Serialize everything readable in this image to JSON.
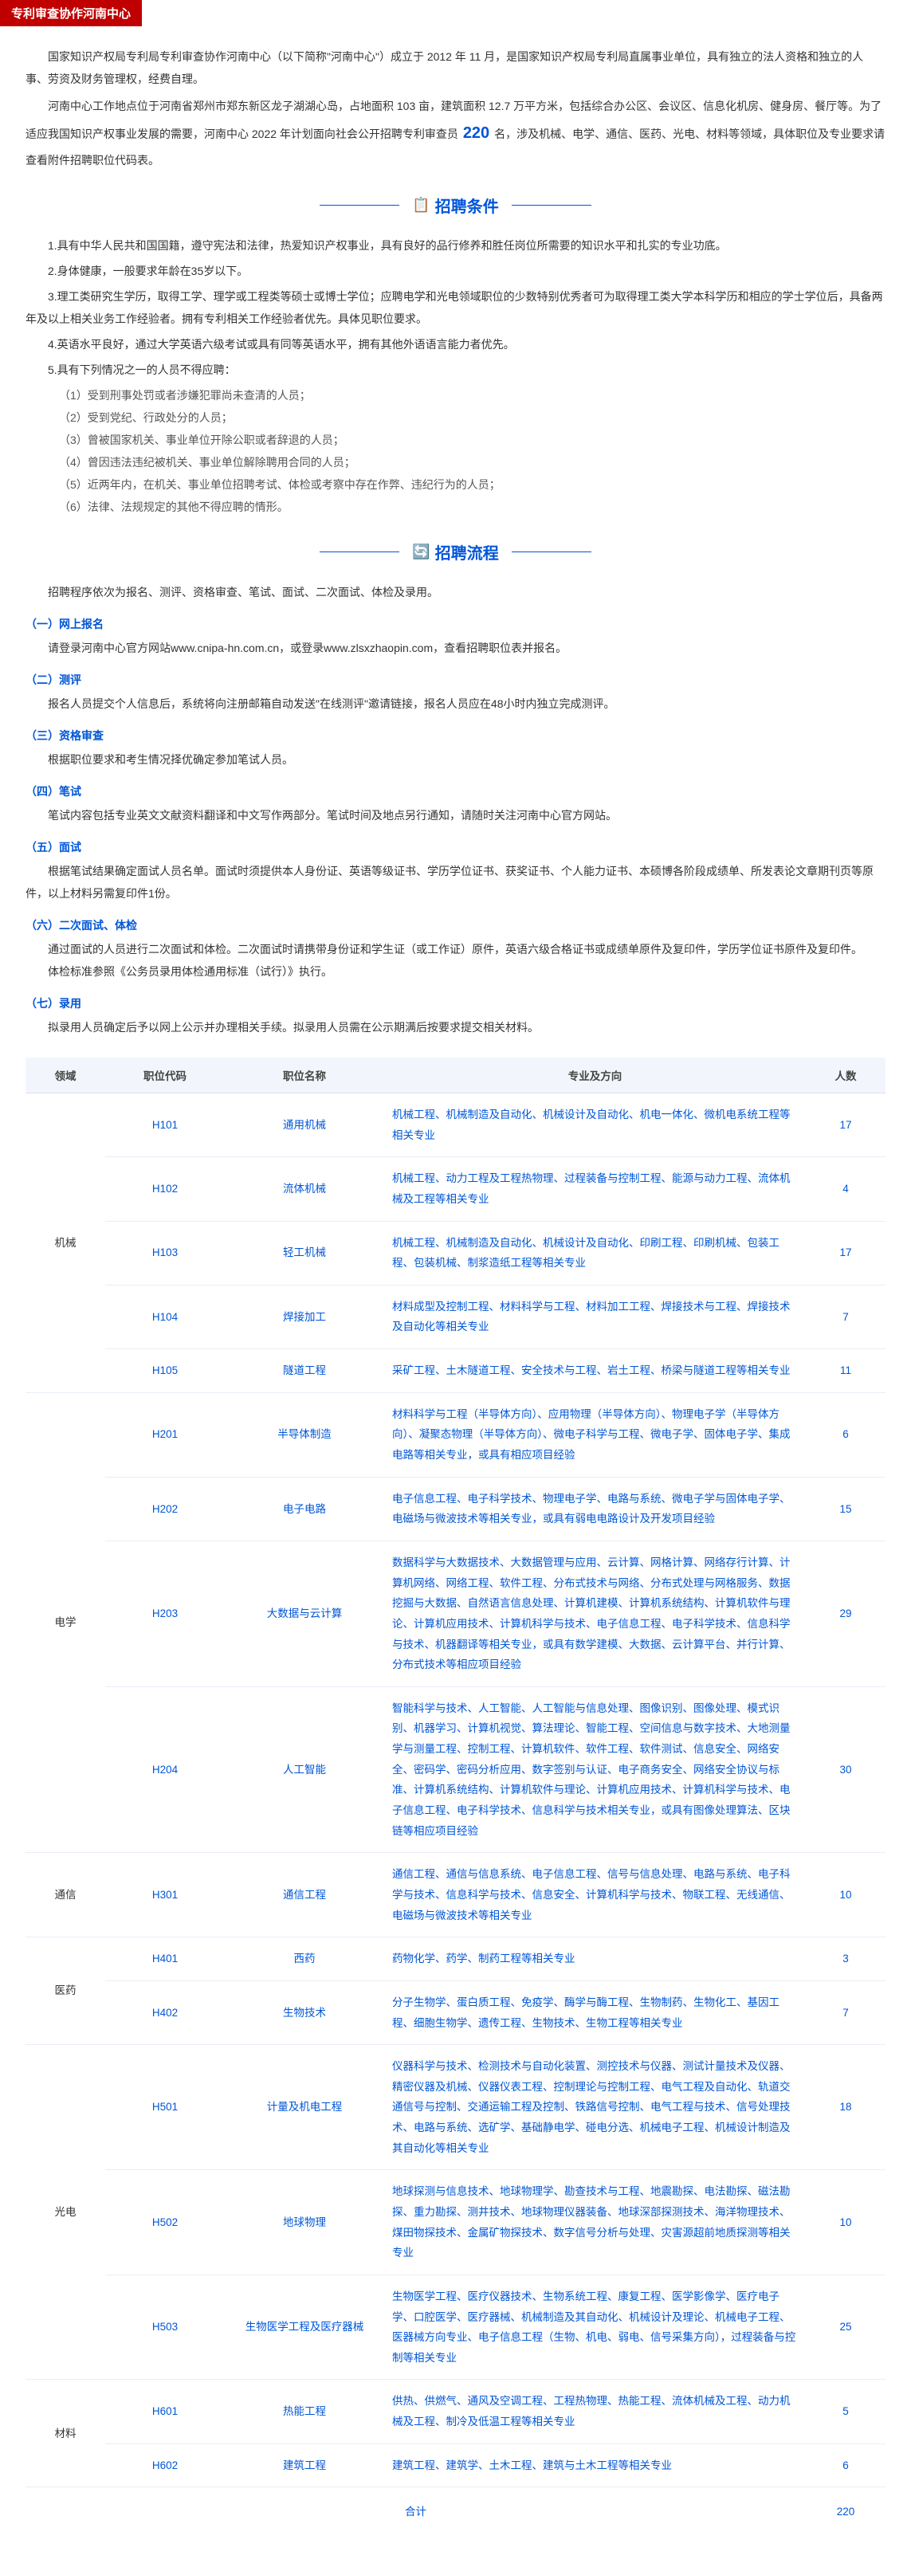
{
  "header": {
    "title": "专利审查协作河南中心"
  },
  "intro": {
    "p1_a": "国家知识产权局专利局专利审查协作河南中心（以下简称\"河南中心\"）成立于 2012 年 11 月，是国家知识产权局专利局直属事业单位，具有独立的法人资格和独立的人事、劳资及财务管理权，经费自理。",
    "p2_a": "河南中心工作地点位于河南省郑州市郑东新区龙子湖湖心岛，占地面积 103 亩，建筑面积 12.7 万平方米，包括综合办公区、会议区、信息化机房、健身房、餐厅等。为了适应我国知识产权事业发展的需要，河南中心 2022 年计划面向社会公开招聘专利审查员 ",
    "big_num": "220",
    "p2_b": " 名，涉及机械、电学、通信、医药、光电、材料等领域，具体职位及专业要求请查看附件招聘职位代码表。"
  },
  "sections": {
    "conditions": "招聘条件",
    "process": "招聘流程"
  },
  "conditions": {
    "c1": "1.具有中华人民共和国国籍，遵守宪法和法律，热爱知识产权事业，具有良好的品行修养和胜任岗位所需要的知识水平和扎实的专业功底。",
    "c2": "2.身体健康，一般要求年龄在35岁以下。",
    "c3": "3.理工类研究生学历，取得工学、理学或工程类等硕士或博士学位；应聘电学和光电领域职位的少数特别优秀者可为取得理工类大学本科学历和相应的学士学位后，具备两年及以上相关业务工作经验者。拥有专利相关工作经验者优先。具体见职位要求。",
    "c4": "4.英语水平良好，通过大学英语六级考试或具有同等英语水平，拥有其他外语语言能力者优先。",
    "c5": "5.具有下列情况之一的人员不得应聘：",
    "s1": "（1）受到刑事处罚或者涉嫌犯罪尚未查清的人员；",
    "s2": "（2）受到党纪、行政处分的人员；",
    "s3": "（3）曾被国家机关、事业单位开除公职或者辞退的人员；",
    "s4": "（4）曾因违法违纪被机关、事业单位解除聘用合同的人员；",
    "s5": "（5）近两年内，在机关、事业单位招聘考试、体检或考察中存在作弊、违纪行为的人员；",
    "s6": "（6）法律、法规规定的其他不得应聘的情形。"
  },
  "process": {
    "intro": "招聘程序依次为报名、测评、资格审查、笔试、面试、二次面试、体检及录用。",
    "steps": [
      {
        "title": "（一）网上报名",
        "body": "请登录河南中心官方网站www.cnipa-hn.com.cn，或登录www.zlsxzhaopin.com，查看招聘职位表并报名。"
      },
      {
        "title": "（二）测评",
        "body": "报名人员提交个人信息后，系统将向注册邮箱自动发送\"在线测评\"邀请链接，报名人员应在48小时内独立完成测评。"
      },
      {
        "title": "（三）资格审查",
        "body": "根据职位要求和考生情况择优确定参加笔试人员。"
      },
      {
        "title": "（四）笔试",
        "body": "笔试内容包括专业英文文献资料翻译和中文写作两部分。笔试时间及地点另行通知，请随时关注河南中心官方网站。"
      },
      {
        "title": "（五）面试",
        "body": "根据笔试结果确定面试人员名单。面试时须提供本人身份证、英语等级证书、学历学位证书、获奖证书、个人能力证书、本硕博各阶段成绩单、所发表论文章期刊页等原件，以上材料另需复印件1份。"
      },
      {
        "title": "（六）二次面试、体检",
        "body": "通过面试的人员进行二次面试和体检。二次面试时请携带身份证和学生证（或工作证）原件，英语六级合格证书或成绩单原件及复印件，学历学位证书原件及复印件。",
        "body2": "体检标准参照《公务员录用体检通用标准（试行）》执行。"
      },
      {
        "title": "（七）录用",
        "body": "拟录用人员确定后予以网上公示并办理相关手续。拟录用人员需在公示期满后按要求提交相关材料。"
      }
    ]
  },
  "table": {
    "headers": {
      "domain": "领域",
      "code": "职位代码",
      "name": "职位名称",
      "major": "专业及方向",
      "count": "人数"
    },
    "rows": [
      {
        "domain": "机械",
        "rowspan": 5,
        "code": "H101",
        "name": "通用机械",
        "major": "机械工程、机械制造及自动化、机械设计及自动化、机电一体化、微机电系统工程等相关专业",
        "count": 17
      },
      {
        "code": "H102",
        "name": "流体机械",
        "major": "机械工程、动力工程及工程热物理、过程装备与控制工程、能源与动力工程、流体机械及工程等相关专业",
        "count": 4
      },
      {
        "code": "H103",
        "name": "轻工机械",
        "major": "机械工程、机械制造及自动化、机械设计及自动化、印刷工程、印刷机械、包装工程、包装机械、制浆造纸工程等相关专业",
        "count": 17
      },
      {
        "code": "H104",
        "name": "焊接加工",
        "major": "材料成型及控制工程、材料科学与工程、材料加工工程、焊接技术与工程、焊接技术及自动化等相关专业",
        "count": 7
      },
      {
        "code": "H105",
        "name": "隧道工程",
        "major": "采矿工程、土木隧道工程、安全技术与工程、岩土工程、桥梁与隧道工程等相关专业",
        "count": 11
      },
      {
        "domain": "电学",
        "rowspan": 4,
        "code": "H201",
        "name": "半导体制造",
        "major": "材料科学与工程（半导体方向）、应用物理（半导体方向）、物理电子学（半导体方向）、凝聚态物理（半导体方向）、微电子科学与工程、微电子学、固体电子学、集成电路等相关专业，或具有相应项目经验",
        "count": 6
      },
      {
        "code": "H202",
        "name": "电子电路",
        "major": "电子信息工程、电子科学技术、物理电子学、电路与系统、微电子学与固体电子学、电磁场与微波技术等相关专业，或具有弱电电路设计及开发项目经验",
        "count": 15
      },
      {
        "code": "H203",
        "name": "大数据与云计算",
        "major": "数据科学与大数据技术、大数据管理与应用、云计算、网格计算、网络存行计算、计算机网络、网络工程、软件工程、分布式技术与网络、分布式处理与网格服务、数据挖掘与大数据、自然语言信息处理、计算机建模、计算机系统结构、计算机软件与理论、计算机应用技术、计算机科学与技术、电子信息工程、电子科学技术、信息科学与技术、机器翻译等相关专业，或具有数学建模、大数据、云计算平台、并行计算、分布式技术等相应项目经验",
        "count": 29
      },
      {
        "code": "H204",
        "name": "人工智能",
        "major": "智能科学与技术、人工智能、人工智能与信息处理、图像识别、图像处理、模式识别、机器学习、计算机视觉、算法理论、智能工程、空间信息与数字技术、大地测量学与测量工程、控制工程、计算机软件、软件工程、软件测试、信息安全、网络安全、密码学、密码分析应用、数字签别与认证、电子商务安全、网络安全协议与标准、计算机系统结构、计算机软件与理论、计算机应用技术、计算机科学与技术、电子信息工程、电子科学技术、信息科学与技术相关专业，或具有图像处理算法、区块链等相应项目经验",
        "count": 30
      },
      {
        "domain": "通信",
        "rowspan": 1,
        "code": "H301",
        "name": "通信工程",
        "major": "通信工程、通信与信息系统、电子信息工程、信号与信息处理、电路与系统、电子科学与技术、信息科学与技术、信息安全、计算机科学与技术、物联工程、无线通信、电磁场与微波技术等相关专业",
        "count": 10
      },
      {
        "domain": "医药",
        "rowspan": 2,
        "code": "H401",
        "name": "西药",
        "major": "药物化学、药学、制药工程等相关专业",
        "count": 3
      },
      {
        "code": "H402",
        "name": "生物技术",
        "major": "分子生物学、蛋白质工程、免疫学、酶学与酶工程、生物制药、生物化工、基因工程、细胞生物学、遗传工程、生物技术、生物工程等相关专业",
        "count": 7
      },
      {
        "domain": "光电",
        "rowspan": 3,
        "code": "H501",
        "name": "计量及机电工程",
        "major": "仪器科学与技术、检测技术与自动化装置、测控技术与仪器、测试计量技术及仪器、精密仪器及机械、仪器仪表工程、控制理论与控制工程、电气工程及自动化、轨道交通信号与控制、交通运输工程及控制、铁路信号控制、电气工程与技术、信号处理技术、电路与系统、选矿学、基础静电学、碰电分选、机械电子工程、机械设计制造及其自动化等相关专业",
        "count": 18
      },
      {
        "code": "H502",
        "name": "地球物理",
        "major": "地球探测与信息技术、地球物理学、勘查技术与工程、地震勘探、电法勘探、磁法勘探、重力勘探、测井技术、地球物理仪器装备、地球深部探测技术、海洋物理技术、煤田物探技术、金属矿物探技术、数字信号分析与处理、灾害源超前地质探测等相关专业",
        "count": 10
      },
      {
        "code": "H503",
        "name": "生物医学工程及医疗器械",
        "major": "生物医学工程、医疗仪器技术、生物系统工程、康复工程、医学影像学、医疗电子学、口腔医学、医疗器械、机械制造及其自动化、机械设计及理论、机械电子工程、医器械方向专业、电子信息工程（生物、机电、弱电、信号采集方向），过程装备与控制等相关专业",
        "count": 25
      },
      {
        "domain": "材料",
        "rowspan": 2,
        "code": "H601",
        "name": "热能工程",
        "major": "供热、供燃气、通风及空调工程、工程热物理、热能工程、流体机械及工程、动力机械及工程、制冷及低温工程等相关专业",
        "count": 5
      },
      {
        "code": "H602",
        "name": "建筑工程",
        "major": "建筑工程、建筑学、土木工程、建筑与土木工程等相关专业",
        "count": 6
      }
    ],
    "total_label": "合计",
    "total": 220
  },
  "colors": {
    "header_bg": "#c00000",
    "accent": "#0056d6",
    "th_bg": "#f2f6fc",
    "border": "#e8eef7"
  }
}
